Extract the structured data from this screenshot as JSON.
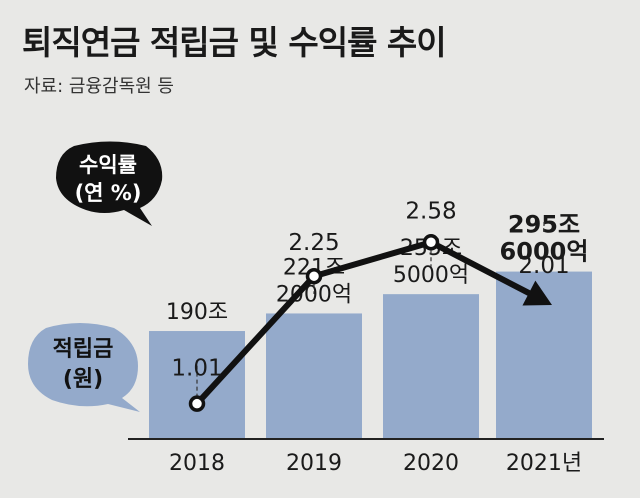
{
  "title": "퇴직연금 적립금 및 수익률 추이",
  "source": "자료: 금융감독원 등",
  "chart_data": {
    "type": "bar",
    "categories": [
      "2018",
      "2019",
      "2020",
      "2021년"
    ],
    "series": [
      {
        "name": "적립금 (원)",
        "type": "bar",
        "values": [
          190,
          221.2,
          255.5,
          295.6
        ],
        "labels": [
          [
            "190조"
          ],
          [
            "221조",
            "2000억"
          ],
          [
            "255조",
            "5000억"
          ],
          [
            "295조",
            "6000억"
          ]
        ],
        "bold_last_label": true,
        "color": "#94aacb"
      },
      {
        "name": "수익률 (연 %)",
        "type": "line",
        "values": [
          1.01,
          2.25,
          2.58,
          2.01
        ],
        "labels": [
          "1.01",
          "2.25",
          "2.58",
          "2.01"
        ],
        "color": "#111111",
        "end_arrow": true
      }
    ],
    "legend": [
      {
        "lines": [
          "수익률",
          "(연 %)"
        ],
        "shape": "dark-speech-bubble",
        "color": "#111111",
        "text_color": "#ffffff"
      },
      {
        "lines": [
          "적립금",
          "(원)"
        ],
        "shape": "blue-speech-bubble",
        "color": "#94aacb",
        "text_color": "#111111"
      }
    ]
  },
  "colors": {
    "background": "#e8e8e6",
    "bar": "#94aacb",
    "line": "#111111",
    "baseline": "#222222",
    "guide": "#333333"
  }
}
